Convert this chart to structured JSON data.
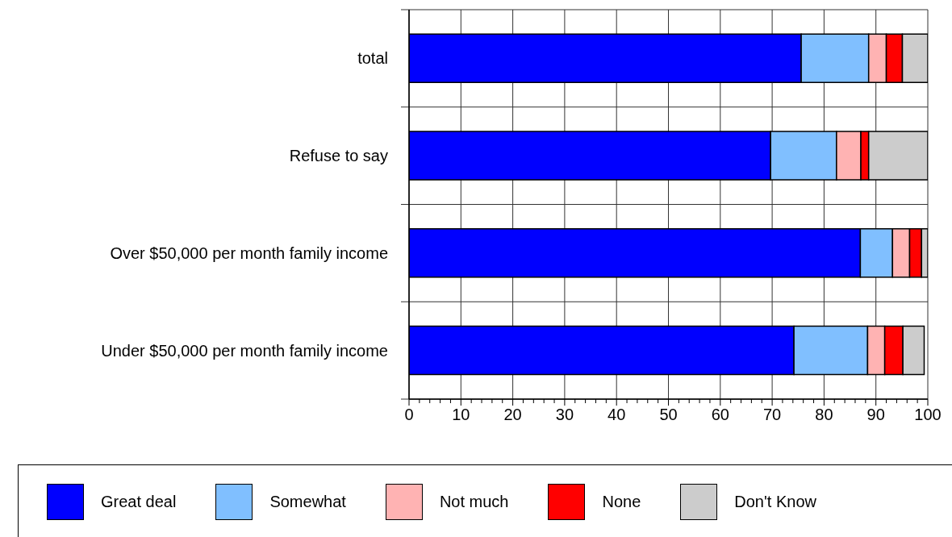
{
  "chart_data": {
    "type": "bar",
    "orientation": "horizontal",
    "stacked": true,
    "categories": [
      "total",
      "Refuse to say",
      "Over $50,000 per month family income",
      "Under $50,000 per month family income"
    ],
    "series": [
      {
        "name": "Great deal",
        "color": "#0000ff",
        "values": [
          75.6,
          69.7,
          87.0,
          74.2
        ]
      },
      {
        "name": "Somewhat",
        "color": "#80bfff",
        "values": [
          13.0,
          12.7,
          6.2,
          14.2
        ]
      },
      {
        "name": "Not much",
        "color": "#ffb3b3",
        "values": [
          3.4,
          4.7,
          3.3,
          3.3
        ]
      },
      {
        "name": "None",
        "color": "#ff0000",
        "values": [
          3.1,
          1.5,
          2.3,
          3.5
        ]
      },
      {
        "name": "Don't Know",
        "color": "#cccccc",
        "values": [
          4.9,
          11.4,
          1.2,
          4.1
        ]
      }
    ],
    "xlim": [
      0,
      100
    ],
    "xticks": [
      0,
      {
        "value": 2,
        "label": null
      },
      {
        "value": 4,
        "label": null
      },
      {
        "value": 6,
        "label": null
      },
      {
        "value": 8,
        "label": null
      },
      10,
      {
        "value": 12,
        "label": null
      },
      {
        "value": 14,
        "label": null
      },
      {
        "value": 16,
        "label": null
      },
      {
        "value": 18,
        "label": null
      },
      20,
      {
        "value": 22,
        "label": null
      },
      {
        "value": 24,
        "label": null
      },
      {
        "value": 26,
        "label": null
      },
      {
        "value": 28,
        "label": null
      },
      30,
      {
        "value": 32,
        "label": null
      },
      {
        "value": 34,
        "label": null
      },
      {
        "value": 36,
        "label": null
      },
      {
        "value": 38,
        "label": null
      },
      40,
      {
        "value": 42,
        "label": null
      },
      {
        "value": 44,
        "label": null
      },
      {
        "value": 46,
        "label": null
      },
      {
        "value": 48,
        "label": null
      },
      50,
      {
        "value": 52,
        "label": null
      },
      {
        "value": 54,
        "label": null
      },
      {
        "value": 56,
        "label": null
      },
      {
        "value": 58,
        "label": null
      },
      60,
      {
        "value": 62,
        "label": null
      },
      {
        "value": 64,
        "label": null
      },
      {
        "value": 66,
        "label": null
      },
      {
        "value": 68,
        "label": null
      },
      70,
      {
        "value": 72,
        "label": null
      },
      {
        "value": 74,
        "label": null
      },
      {
        "value": 76,
        "label": null
      },
      {
        "value": 78,
        "label": null
      },
      80,
      {
        "value": 82,
        "label": null
      },
      {
        "value": 84,
        "label": null
      },
      {
        "value": 86,
        "label": null
      },
      {
        "value": 88,
        "label": null
      },
      90,
      {
        "value": 92,
        "label": null
      },
      {
        "value": 94,
        "label": null
      },
      {
        "value": 96,
        "label": null
      },
      {
        "value": 98,
        "label": null
      },
      100
    ],
    "grid": true,
    "legend": "bottom"
  }
}
